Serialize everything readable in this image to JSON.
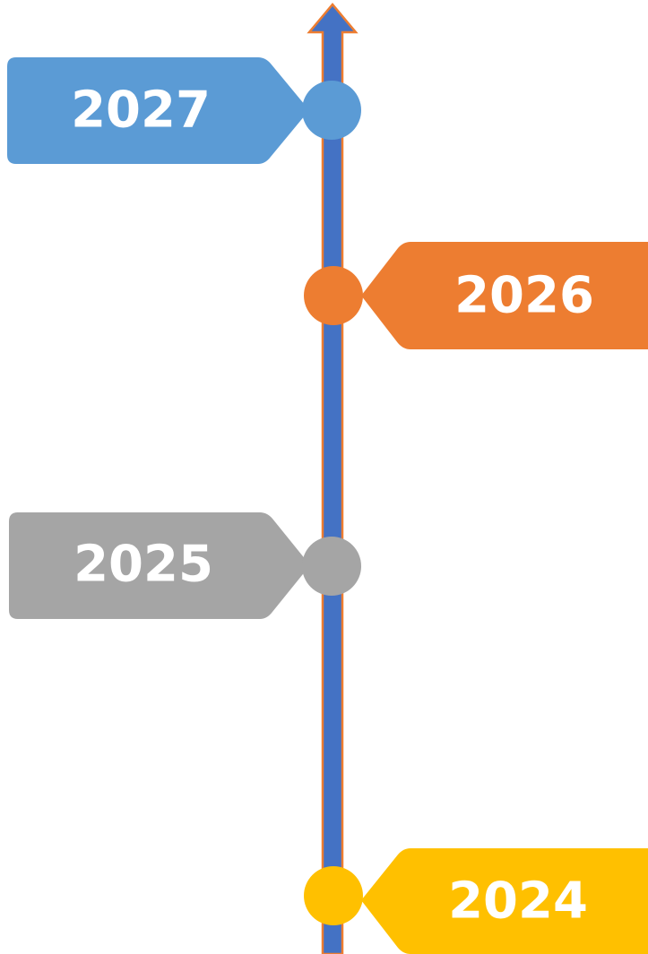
{
  "timeline": {
    "milestones": [
      {
        "label": "2027"
      },
      {
        "label": "2026"
      },
      {
        "label": "2025"
      },
      {
        "label": "2024"
      }
    ]
  }
}
